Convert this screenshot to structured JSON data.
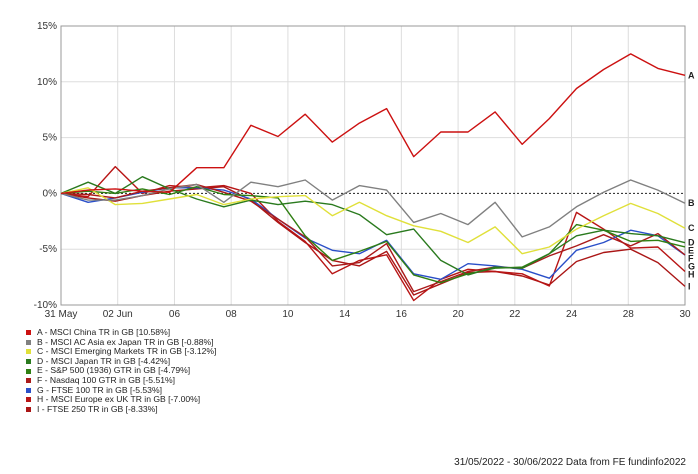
{
  "chart_data": {
    "type": "line",
    "x_labels": [
      "31 May",
      "02 Jun",
      "06",
      "08",
      "10",
      "14",
      "16",
      "20",
      "22",
      "24",
      "28",
      "30"
    ],
    "ylim": [
      -10,
      15
    ],
    "y_ticks": [
      -10,
      -5,
      0,
      5,
      10,
      15
    ],
    "y_tick_labels": [
      "-10%",
      "-5%",
      "0%",
      "5%",
      "10%",
      "15%"
    ],
    "grid": true,
    "zero_line": "dashed",
    "legend_placement": "bottom-left",
    "series": [
      {
        "key": "A",
        "name": "A - MSCI China TR in GB [10.58%]",
        "color": "#cc1111",
        "values": [
          0,
          0.3,
          0.4,
          0.2,
          0.1,
          2.3,
          2.3,
          6.1,
          5.1,
          7.1,
          4.6,
          6.3,
          7.6,
          3.3,
          5.5,
          5.5,
          7.3,
          4.4,
          6.7,
          9.4,
          11.1,
          12.5,
          11.2,
          10.58
        ]
      },
      {
        "key": "B",
        "name": "B - MSCI AC Asia ex Japan TR in GB [-0.88%]",
        "color": "#808080",
        "values": [
          0,
          -0.6,
          -0.6,
          -0.2,
          0.4,
          0.8,
          -0.8,
          1.0,
          0.6,
          1.2,
          -0.6,
          0.7,
          0.3,
          -2.6,
          -1.8,
          -2.8,
          -0.8,
          -3.9,
          -3.0,
          -1.2,
          0.1,
          1.2,
          0.3,
          -0.88
        ]
      },
      {
        "key": "C",
        "name": "C - MSCI Emerging Markets TR in GB [-3.12%]",
        "color": "#e0e03a",
        "values": [
          0,
          0.5,
          -1.0,
          -0.9,
          -0.5,
          -0.1,
          -1.0,
          -0.5,
          -0.3,
          -0.2,
          -2.0,
          -0.8,
          -2.0,
          -2.9,
          -3.4,
          -4.4,
          -3.0,
          -5.4,
          -4.8,
          -3.2,
          -2.0,
          -0.9,
          -1.8,
          -3.12
        ]
      },
      {
        "key": "D",
        "name": "D - MSCI Japan TR in GB [-4.42%]",
        "color": "#2a7a1e",
        "values": [
          0,
          1.0,
          0.0,
          1.5,
          0.4,
          -0.5,
          -1.2,
          -0.6,
          -1.0,
          -0.7,
          -1.0,
          -1.9,
          -3.7,
          -3.2,
          -6.0,
          -7.3,
          -6.6,
          -6.7,
          -5.4,
          -3.8,
          -3.3,
          -3.6,
          -3.8,
          -4.42
        ]
      },
      {
        "key": "E",
        "name": "E - S&P 500 (1936) GTR in GB [-4.79%]",
        "color": "#2f7f12",
        "values": [
          0,
          0.2,
          0.0,
          0.4,
          -0.1,
          0.6,
          -0.1,
          -0.2,
          -0.4,
          -3.8,
          -6.0,
          -5.2,
          -4.3,
          -7.3,
          -8.0,
          -7.2,
          -6.7,
          -6.6,
          -5.4,
          -2.8,
          -3.3,
          -4.3,
          -4.2,
          -4.79
        ]
      },
      {
        "key": "F",
        "name": "F - Nasdaq 100 GTR in GB [-5.51%]",
        "color": "#aa1a1a",
        "values": [
          0,
          -0.1,
          -0.4,
          0.2,
          0.5,
          0.8,
          0.1,
          -0.7,
          -2.3,
          -3.9,
          -6.5,
          -6.2,
          -4.5,
          -8.8,
          -7.9,
          -7.0,
          -6.6,
          -6.7,
          -5.6,
          -4.7,
          -3.7,
          -4.7,
          -3.6,
          -5.51
        ]
      },
      {
        "key": "G",
        "name": "G - FTSE 100 TR in GB [-5.53%]",
        "color": "#2a4fc8",
        "values": [
          0,
          -0.8,
          -0.4,
          0.1,
          0.5,
          0.5,
          0.3,
          -0.5,
          -2.3,
          -4.0,
          -5.1,
          -5.4,
          -4.2,
          -7.2,
          -7.7,
          -6.3,
          -6.5,
          -6.8,
          -7.6,
          -5.1,
          -4.4,
          -3.3,
          -3.8,
          -5.53
        ]
      },
      {
        "key": "H",
        "name": "H - MSCI Europe ex UK TR in GB [-7.00%]",
        "color": "#b81515",
        "values": [
          0,
          -0.3,
          2.4,
          0.0,
          0.7,
          0.5,
          0.7,
          0.0,
          -2.5,
          -4.3,
          -7.2,
          -6.0,
          -5.5,
          -9.6,
          -7.7,
          -6.8,
          -7.0,
          -7.2,
          -8.3,
          -1.7,
          -3.2,
          -4.9,
          -4.8,
          -7.0
        ]
      },
      {
        "key": "I",
        "name": "I - FTSE 250 TR in GB [-8.33%]",
        "color": "#aa1515",
        "values": [
          0,
          -0.4,
          -0.7,
          -0.2,
          0.2,
          0.4,
          0.6,
          -0.6,
          -2.6,
          -4.4,
          -6.0,
          -6.5,
          -5.2,
          -9.1,
          -8.1,
          -7.1,
          -7.0,
          -7.4,
          -8.2,
          -6.1,
          -5.3,
          -5.0,
          -6.2,
          -8.33
        ]
      }
    ]
  },
  "footer": {
    "text": "31/05/2022 - 30/06/2022 Data from FE fundinfo2022"
  }
}
